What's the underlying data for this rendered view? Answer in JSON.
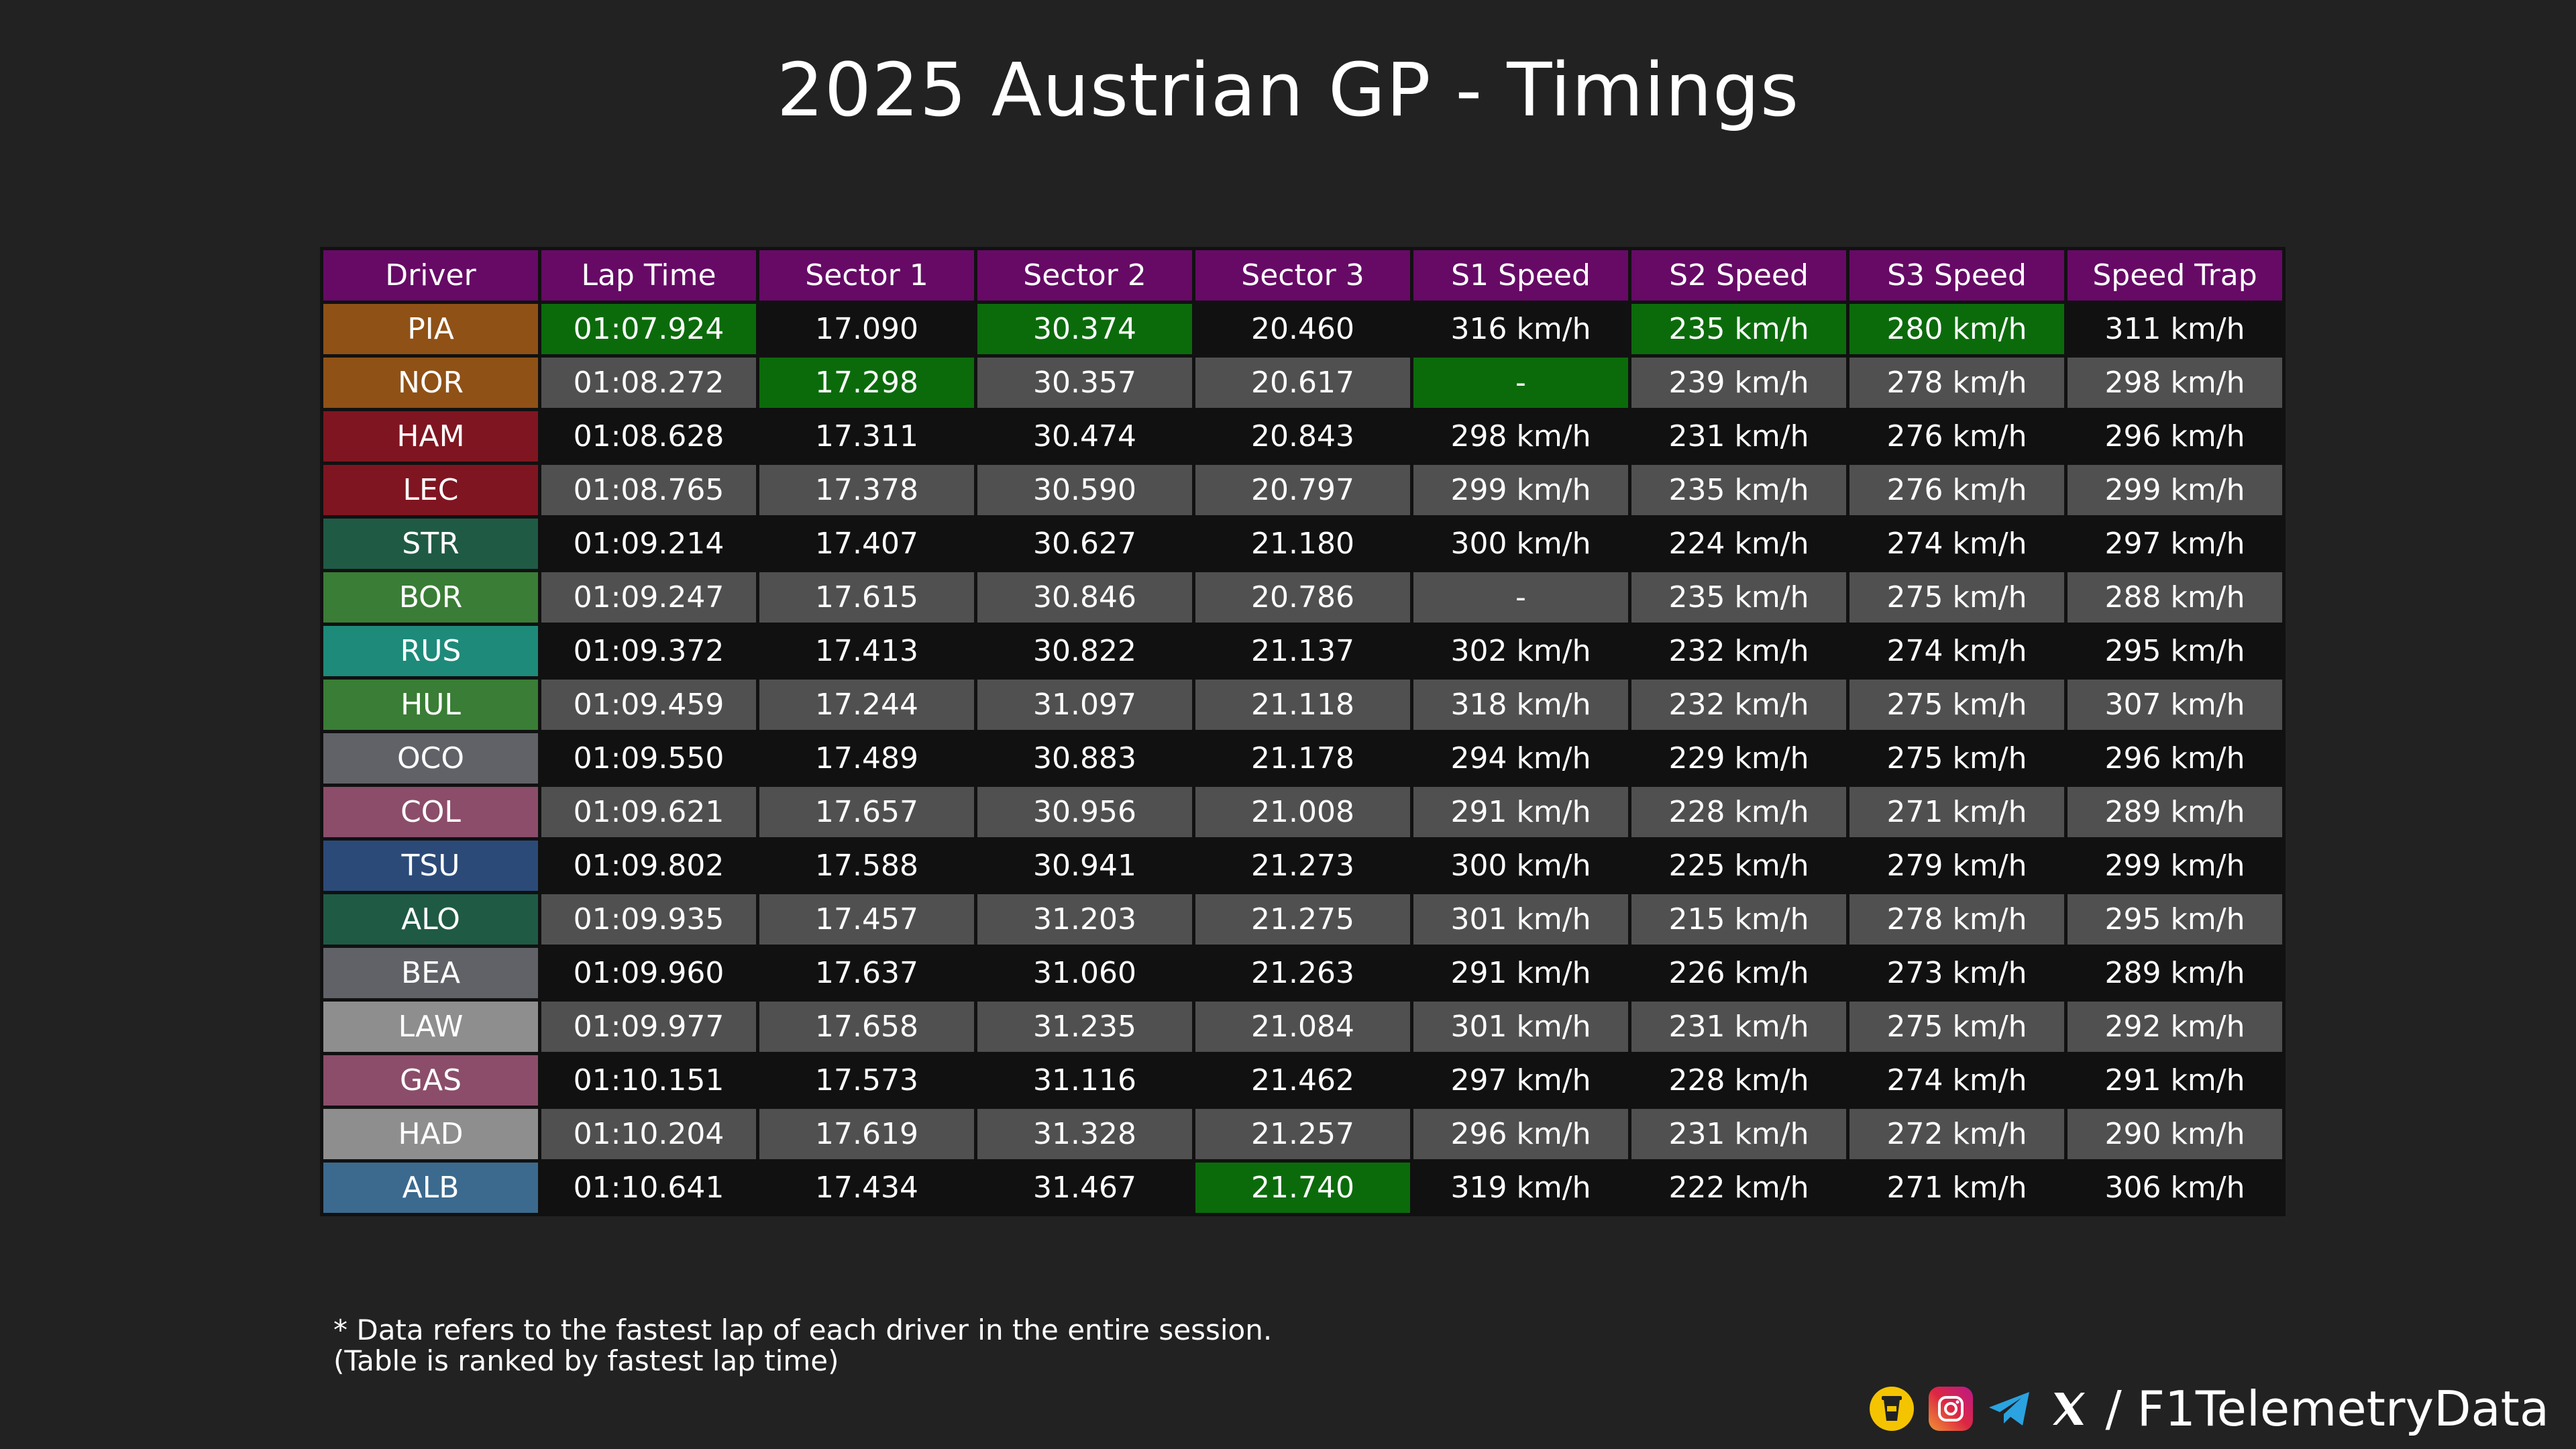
{
  "title": "2025 Austrian GP - Timings",
  "watermark": "F1TelemetryData",
  "footnote": {
    "line1": "* Data refers to the fastest lap of each driver in the entire session.",
    "line2": "(Table is ranked by fastest lap time)"
  },
  "social": {
    "handle": "/ F1TelemetryData",
    "icons": [
      "buy-me-a-coffee-icon",
      "instagram-icon",
      "telegram-icon",
      "x-icon"
    ]
  },
  "colors": {
    "header": "#660a66",
    "best": "#0b6b0b",
    "row_dark": "#111111",
    "row_light": "#505050"
  },
  "chart_data": {
    "type": "table",
    "title": "2025 Austrian GP - Timings",
    "columns": [
      "Driver",
      "Lap Time",
      "Sector 1",
      "Sector 2",
      "Sector 3",
      "S1 Speed",
      "S2 Speed",
      "S3 Speed",
      "Speed Trap"
    ],
    "rows": [
      {
        "driver": "PIA",
        "color": "#8f5116",
        "cells": [
          "01:07.924",
          "17.090",
          "30.374",
          "20.460",
          "316 km/h",
          "235 km/h",
          "280 km/h",
          "311 km/h"
        ],
        "best": [
          1,
          3,
          6,
          7
        ]
      },
      {
        "driver": "NOR",
        "color": "#8f5116",
        "cells": [
          "01:08.272",
          "17.298",
          "30.357",
          "20.617",
          "-",
          "239 km/h",
          "278 km/h",
          "298 km/h"
        ],
        "best": [
          2,
          5
        ]
      },
      {
        "driver": "HAM",
        "color": "#7f1520",
        "cells": [
          "01:08.628",
          "17.311",
          "30.474",
          "20.843",
          "298 km/h",
          "231 km/h",
          "276 km/h",
          "296 km/h"
        ],
        "best": []
      },
      {
        "driver": "LEC",
        "color": "#7f1520",
        "cells": [
          "01:08.765",
          "17.378",
          "30.590",
          "20.797",
          "299 km/h",
          "235 km/h",
          "276 km/h",
          "299 km/h"
        ],
        "best": []
      },
      {
        "driver": "STR",
        "color": "#1f5a45",
        "cells": [
          "01:09.214",
          "17.407",
          "30.627",
          "21.180",
          "300 km/h",
          "224 km/h",
          "274 km/h",
          "297 km/h"
        ],
        "best": []
      },
      {
        "driver": "BOR",
        "color": "#3a7d36",
        "cells": [
          "01:09.247",
          "17.615",
          "30.846",
          "20.786",
          "-",
          "235 km/h",
          "275 km/h",
          "288 km/h"
        ],
        "best": []
      },
      {
        "driver": "RUS",
        "color": "#1e8a7a",
        "cells": [
          "01:09.372",
          "17.413",
          "30.822",
          "21.137",
          "302 km/h",
          "232 km/h",
          "274 km/h",
          "295 km/h"
        ],
        "best": []
      },
      {
        "driver": "HUL",
        "color": "#3a7d36",
        "cells": [
          "01:09.459",
          "17.244",
          "31.097",
          "21.118",
          "318 km/h",
          "232 km/h",
          "275 km/h",
          "307 km/h"
        ],
        "best": []
      },
      {
        "driver": "OCO",
        "color": "#606268",
        "cells": [
          "01:09.550",
          "17.489",
          "30.883",
          "21.178",
          "294 km/h",
          "229 km/h",
          "275 km/h",
          "296 km/h"
        ],
        "best": []
      },
      {
        "driver": "COL",
        "color": "#8b4d6a",
        "cells": [
          "01:09.621",
          "17.657",
          "30.956",
          "21.008",
          "291 km/h",
          "228 km/h",
          "271 km/h",
          "289 km/h"
        ],
        "best": []
      },
      {
        "driver": "TSU",
        "color": "#2c4a78",
        "cells": [
          "01:09.802",
          "17.588",
          "30.941",
          "21.273",
          "300 km/h",
          "225 km/h",
          "279 km/h",
          "299 km/h"
        ],
        "best": []
      },
      {
        "driver": "ALO",
        "color": "#1f5a45",
        "cells": [
          "01:09.935",
          "17.457",
          "31.203",
          "21.275",
          "301 km/h",
          "215 km/h",
          "278 km/h",
          "295 km/h"
        ],
        "best": []
      },
      {
        "driver": "BEA",
        "color": "#606268",
        "cells": [
          "01:09.960",
          "17.637",
          "31.060",
          "21.263",
          "291 km/h",
          "226 km/h",
          "273 km/h",
          "289 km/h"
        ],
        "best": []
      },
      {
        "driver": "LAW",
        "color": "#8e8e8e",
        "cells": [
          "01:09.977",
          "17.658",
          "31.235",
          "21.084",
          "301 km/h",
          "231 km/h",
          "275 km/h",
          "292 km/h"
        ],
        "best": []
      },
      {
        "driver": "GAS",
        "color": "#8b4d6a",
        "cells": [
          "01:10.151",
          "17.573",
          "31.116",
          "21.462",
          "297 km/h",
          "228 km/h",
          "274 km/h",
          "291 km/h"
        ],
        "best": []
      },
      {
        "driver": "HAD",
        "color": "#8e8e8e",
        "cells": [
          "01:10.204",
          "17.619",
          "31.328",
          "21.257",
          "296 km/h",
          "231 km/h",
          "272 km/h",
          "290 km/h"
        ],
        "best": []
      },
      {
        "driver": "ALB",
        "color": "#3b6a8e",
        "cells": [
          "01:10.641",
          "17.434",
          "31.467",
          "21.740",
          "319 km/h",
          "222 km/h",
          "271 km/h",
          "306 km/h"
        ],
        "best": [
          4
        ]
      }
    ]
  }
}
